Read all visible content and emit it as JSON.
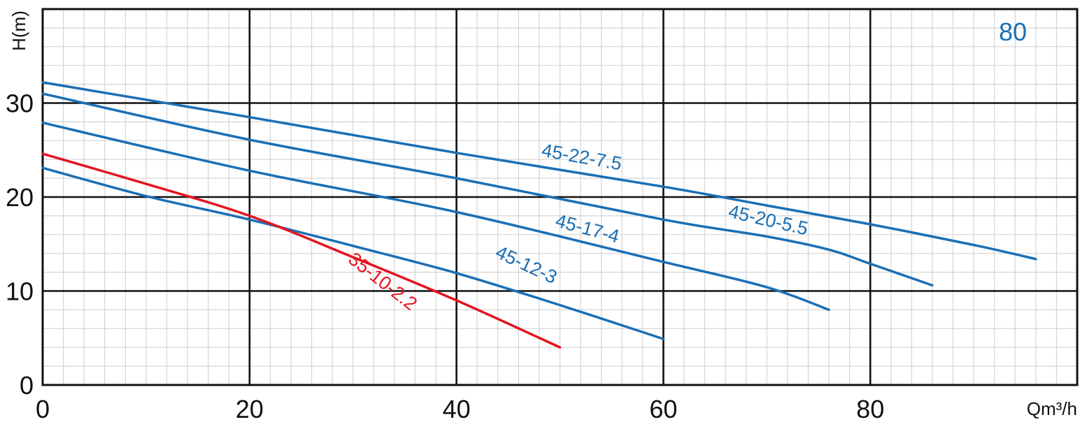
{
  "chart_data": {
    "type": "line",
    "title": "",
    "corner_label": "80",
    "xlabel": "Qm³/h",
    "ylabel": "H(m)",
    "xlim": [
      0,
      100
    ],
    "ylim": [
      0,
      40
    ],
    "xticks": [
      0,
      20,
      40,
      60,
      80
    ],
    "xtick_labels": [
      "0",
      "20",
      "40",
      "60",
      "80"
    ],
    "yticks": [
      0,
      10,
      20,
      30
    ],
    "ytick_labels": [
      "0",
      "10",
      "20",
      "30"
    ],
    "major_grid": true,
    "minor_grid": true,
    "legend": "none",
    "series": [
      {
        "name": "45-22-7.5",
        "color": "#1a6fb5",
        "points": [
          [
            0,
            32.2
          ],
          [
            20,
            28.5
          ],
          [
            40,
            24.7
          ],
          [
            60,
            21.1
          ],
          [
            70,
            19.1
          ],
          [
            80,
            17.1
          ],
          [
            90,
            14.9
          ],
          [
            96,
            13.4
          ]
        ],
        "label_at": [
          52,
          23.6
        ],
        "label_angle": 10
      },
      {
        "name": "45-20-5.5",
        "color": "#1a6fb5",
        "points": [
          [
            0,
            31.0
          ],
          [
            20,
            26.1
          ],
          [
            40,
            22.0
          ],
          [
            60,
            17.6
          ],
          [
            70,
            15.8
          ],
          [
            76,
            14.4
          ],
          [
            80,
            12.9
          ],
          [
            86,
            10.6
          ]
        ],
        "label_at": [
          70,
          16.9
        ],
        "label_angle": 13
      },
      {
        "name": "45-17-4",
        "color": "#1a6fb5",
        "points": [
          [
            0,
            27.9
          ],
          [
            20,
            22.8
          ],
          [
            40,
            18.4
          ],
          [
            60,
            13.1
          ],
          [
            70,
            10.4
          ],
          [
            76,
            8.0
          ]
        ],
        "label_at": [
          52.5,
          16.0
        ],
        "label_angle": 15
      },
      {
        "name": "45-12-3",
        "color": "#1a6fb5",
        "points": [
          [
            0,
            23.1
          ],
          [
            10,
            20.1
          ],
          [
            20,
            17.6
          ],
          [
            30,
            14.8
          ],
          [
            40,
            11.9
          ],
          [
            50,
            8.5
          ],
          [
            60,
            4.9
          ]
        ],
        "label_at": [
          46.5,
          12.2
        ],
        "label_angle": 25
      },
      {
        "name": "35-10-2.2",
        "color": "#e3141f",
        "points": [
          [
            0,
            24.6
          ],
          [
            10,
            21.4
          ],
          [
            20,
            18.0
          ],
          [
            30,
            13.6
          ],
          [
            40,
            9.0
          ],
          [
            50,
            4.0
          ]
        ],
        "label_at": [
          32.5,
          10.5
        ],
        "label_angle": 38
      }
    ]
  }
}
